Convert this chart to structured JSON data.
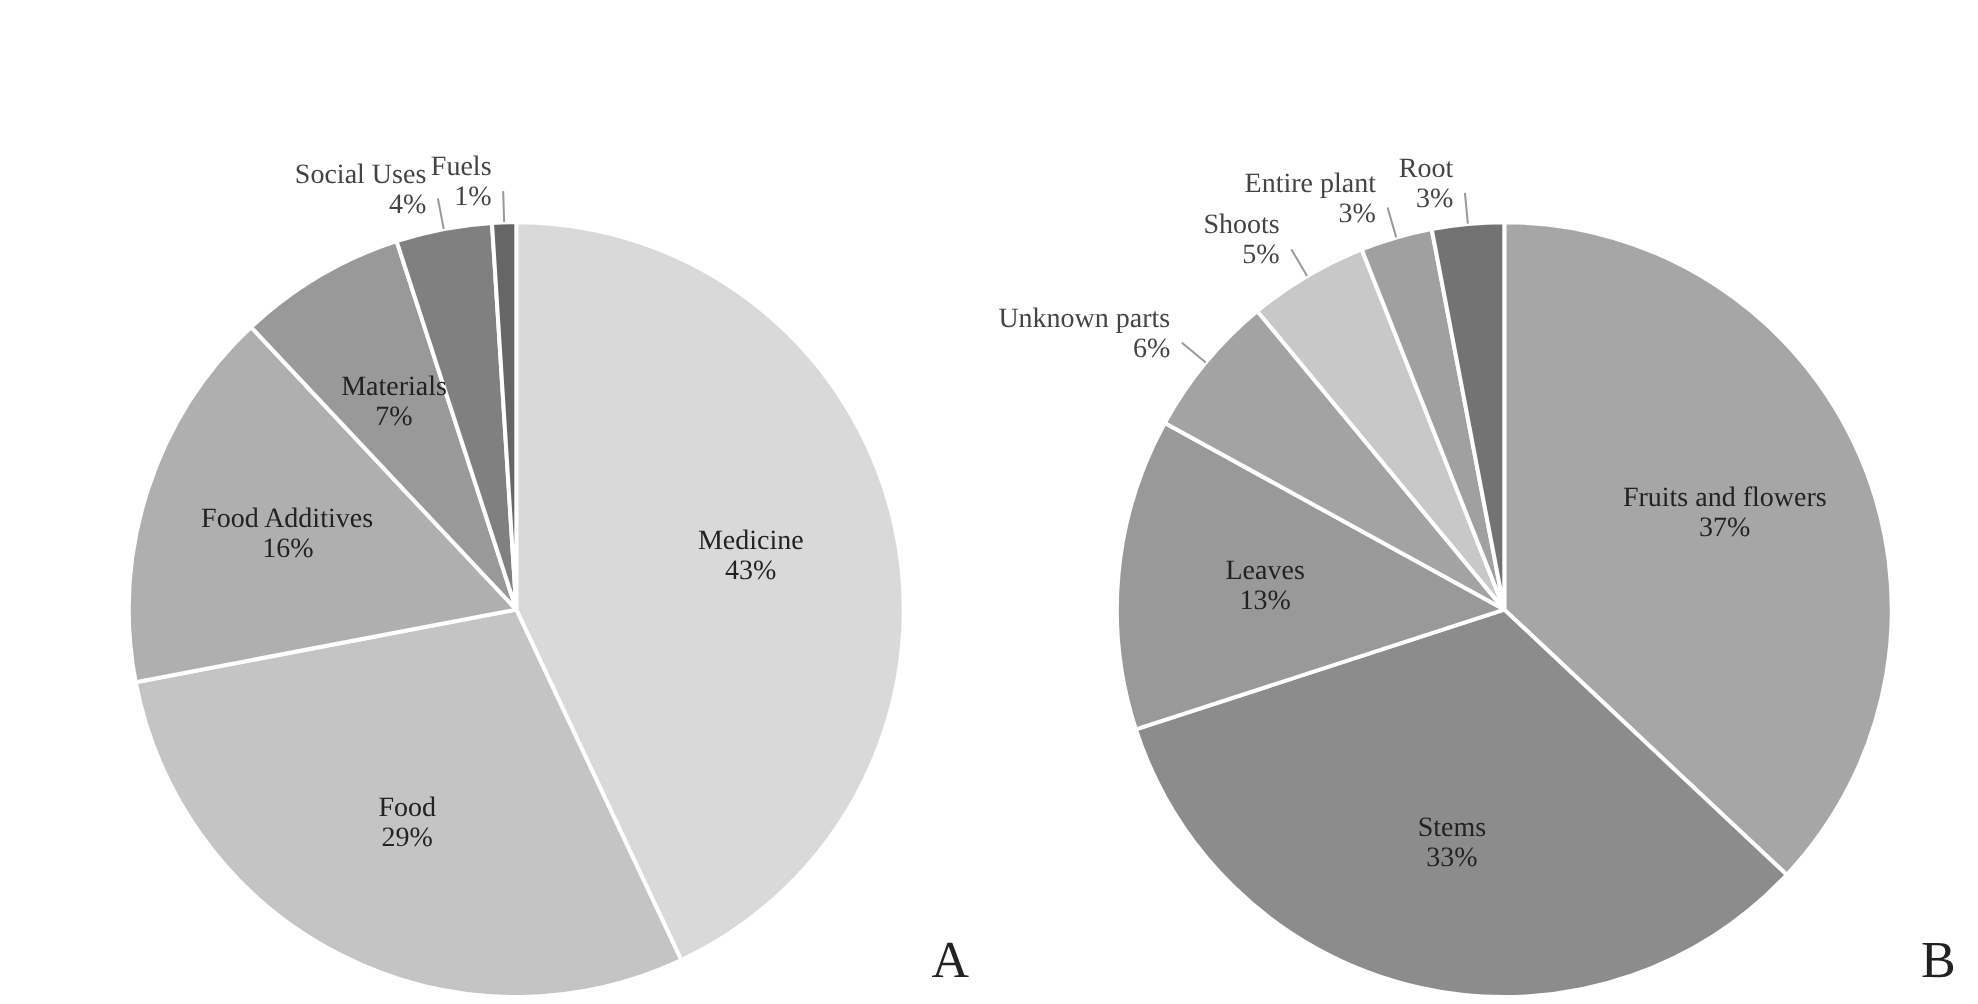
{
  "chart_data": [
    {
      "type": "pie",
      "categories": [
        "Medicine",
        "Food",
        "Food Additives",
        "Materials",
        "Social Uses",
        "Fuels"
      ],
      "values": [
        43,
        29,
        16,
        7,
        4,
        1
      ],
      "value_labels": [
        "43%",
        "29%",
        "16%",
        "7%",
        "4%",
        "1%"
      ],
      "colors": [
        "#d9d9d9",
        "#c4c4c4",
        "#afafaf",
        "#999999",
        "#808080",
        "#666666"
      ],
      "data_labels": true,
      "annotations": [
        "A"
      ]
    },
    {
      "type": "pie",
      "categories": [
        "Fruits and flowers",
        "Stems",
        "Leaves",
        "Unknown parts",
        "Shoots",
        "Entire plant",
        "Root"
      ],
      "values": [
        37,
        33,
        13,
        6,
        5,
        3,
        3
      ],
      "value_labels": [
        "37%",
        "33%",
        "13%",
        "6%",
        "5%",
        "3%",
        "3%"
      ],
      "colors": [
        "#a6a6a6",
        "#8c8c8c",
        "#999999",
        "#a3a3a3",
        "#c8c8c8",
        "#a0a0a0",
        "#737373"
      ],
      "data_labels": true,
      "annotations": [
        "B"
      ]
    }
  ]
}
